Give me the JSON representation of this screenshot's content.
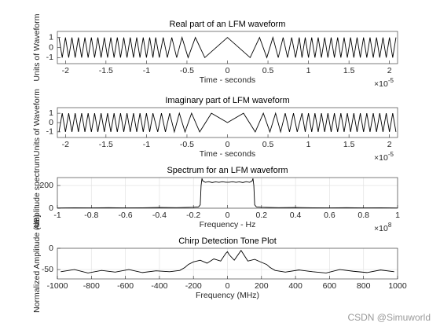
{
  "charts": [
    {
      "type": "line",
      "title": "Real part of an LFM waveform",
      "xlabel": "Time - seconds",
      "ylabel": "Units of Waveform",
      "x_multiplier": {
        "base": "×10",
        "exponent": "-5"
      },
      "xlim": [
        -2.1,
        2.1
      ],
      "xticks": [
        -2,
        -1.5,
        -1,
        -0.5,
        0,
        0.5,
        1,
        1.5,
        2
      ],
      "ylim": [
        -1.6,
        1.6
      ],
      "yticks": [
        -1,
        0,
        1
      ],
      "grid": false,
      "series": [
        {
          "color": "#000000",
          "x": [
            -2.08,
            -2.04,
            -2,
            -1.96,
            -1.92,
            -1.88,
            -1.84,
            -1.8,
            -1.76,
            -1.72,
            -1.68,
            -1.64,
            -1.6,
            -1.56,
            -1.52,
            -1.48,
            -1.44,
            -1.4,
            -1.36,
            -1.32,
            -1.28,
            -1.24,
            -1.2,
            -1.16,
            -1.12,
            -1.08,
            -1.04,
            -1,
            -0.96,
            -0.92,
            -0.886,
            -0.841,
            -0.793,
            -0.742,
            -0.687,
            -0.627,
            -0.561,
            -0.486,
            -0.396,
            -0.28,
            0,
            0.28,
            0.396,
            0.486,
            0.561,
            0.627,
            0.687,
            0.742,
            0.793,
            0.841,
            0.886,
            0.92,
            0.96,
            1,
            1.04,
            1.08,
            1.12,
            1.16,
            1.2,
            1.24,
            1.28,
            1.32,
            1.36,
            1.4,
            1.44,
            1.48,
            1.52,
            1.56,
            1.6,
            1.64,
            1.68,
            1.72,
            1.76,
            1.8,
            1.84,
            1.88,
            1.92,
            1.96,
            2,
            2.04,
            2.08
          ],
          "values": [
            1,
            -1,
            1,
            -1,
            1,
            -1,
            1,
            -1,
            1,
            -1,
            1,
            -1,
            1,
            -1,
            1,
            -1,
            1,
            -1,
            1,
            -1,
            1,
            -1,
            1,
            -1,
            1,
            -1,
            1,
            -1,
            1,
            -1,
            1,
            -1,
            1,
            -1,
            1,
            -1,
            1,
            -1,
            1,
            -1,
            1,
            -1,
            1,
            -1,
            1,
            -1,
            1,
            -1,
            1,
            -1,
            1,
            -1,
            1,
            -1,
            1,
            -1,
            1,
            -1,
            1,
            -1,
            1,
            -1,
            1,
            -1,
            1,
            -1,
            1,
            -1,
            1,
            -1,
            1,
            -1,
            1,
            -1,
            1,
            -1,
            1,
            -1,
            1,
            -1,
            1
          ]
        }
      ]
    },
    {
      "type": "line",
      "title": "Imaginary part of LFM waveform",
      "xlabel": "Time - seconds",
      "ylabel": "Units of Waveform",
      "x_multiplier": {
        "base": "×10",
        "exponent": "-5"
      },
      "xlim": [
        -2.1,
        2.1
      ],
      "xticks": [
        -2,
        -1.5,
        -1,
        -0.5,
        0,
        0.5,
        1,
        1.5,
        2
      ],
      "ylim": [
        -1.6,
        1.6
      ],
      "yticks": [
        -1,
        0,
        1
      ],
      "grid": false,
      "series": [
        {
          "color": "#000000",
          "x": [
            -2.08,
            -2.04,
            -2,
            -1.96,
            -1.92,
            -1.88,
            -1.84,
            -1.8,
            -1.76,
            -1.72,
            -1.68,
            -1.64,
            -1.6,
            -1.56,
            -1.52,
            -1.48,
            -1.44,
            -1.4,
            -1.36,
            -1.32,
            -1.28,
            -1.24,
            -1.2,
            -1.16,
            -1.12,
            -1.08,
            -1.04,
            -1,
            -0.96,
            -0.92,
            -0.861,
            -0.815,
            -0.766,
            -0.713,
            -0.656,
            -0.594,
            -0.524,
            -0.443,
            -0.343,
            -0.198,
            0,
            0.198,
            0.343,
            0.443,
            0.524,
            0.594,
            0.656,
            0.713,
            0.766,
            0.815,
            0.861,
            0.92,
            0.96,
            1,
            1.04,
            1.08,
            1.12,
            1.16,
            1.2,
            1.24,
            1.28,
            1.32,
            1.36,
            1.4,
            1.44,
            1.48,
            1.52,
            1.56,
            1.6,
            1.64,
            1.68,
            1.72,
            1.76,
            1.8,
            1.84,
            1.88,
            1.92,
            1.96,
            2,
            2.04,
            2.08
          ],
          "values": [
            -1,
            1,
            -1,
            1,
            -1,
            1,
            -1,
            1,
            -1,
            1,
            -1,
            1,
            -1,
            1,
            -1,
            1,
            -1,
            1,
            -1,
            1,
            -1,
            1,
            -1,
            1,
            -1,
            1,
            -1,
            1,
            -1,
            1,
            -1,
            1,
            -1,
            1,
            -1,
            1,
            -1,
            1,
            -1,
            1,
            0,
            1,
            -1,
            1,
            -1,
            1,
            -1,
            1,
            -1,
            1,
            -1,
            1,
            -1,
            1,
            -1,
            1,
            -1,
            1,
            -1,
            1,
            -1,
            1,
            -1,
            1,
            -1,
            1,
            -1,
            1,
            -1,
            1,
            -1,
            1,
            -1,
            1,
            -1,
            1,
            -1,
            1,
            -1,
            1,
            -1
          ]
        }
      ]
    },
    {
      "type": "line",
      "title": "Spectrum for an LFM waveform",
      "xlabel": "Frequency - Hz",
      "ylabel": "Amplitude spectrum",
      "x_multiplier": {
        "base": "×10",
        "exponent": "8"
      },
      "xlim": [
        -1,
        1
      ],
      "xticks": [
        -1,
        -0.8,
        -0.6,
        -0.4,
        -0.2,
        0,
        0.2,
        0.4,
        0.6,
        0.8,
        1
      ],
      "ylim": [
        0,
        270
      ],
      "yticks": [
        0,
        200
      ],
      "grid": true,
      "series": [
        {
          "color": "#000000",
          "x": [
            -1,
            -0.9,
            -0.8,
            -0.7,
            -0.6,
            -0.5,
            -0.4,
            -0.3,
            -0.2,
            -0.17,
            -0.16,
            -0.155,
            -0.15,
            -0.145,
            -0.13,
            -0.11,
            -0.09,
            -0.07,
            -0.05,
            -0.03,
            -0.01,
            0.01,
            0.03,
            0.05,
            0.07,
            0.09,
            0.11,
            0.13,
            0.145,
            0.15,
            0.155,
            0.16,
            0.17,
            0.2,
            0.3,
            0.4,
            0.5,
            0.6,
            0.7,
            0.8,
            0.9,
            1
          ],
          "values": [
            2,
            4,
            3,
            5,
            3,
            4,
            6,
            5,
            8,
            12,
            30,
            200,
            262,
            240,
            228,
            234,
            226,
            232,
            228,
            233,
            229,
            229,
            233,
            228,
            232,
            226,
            234,
            228,
            240,
            262,
            200,
            30,
            12,
            8,
            5,
            6,
            4,
            3,
            5,
            3,
            4,
            2
          ]
        }
      ]
    },
    {
      "type": "line",
      "title": "Chirp Detection Tone Plot",
      "xlabel": "Frequency (MHz)",
      "ylabel": "Normalized Amplitude (dB)",
      "xlim": [
        -1000,
        1000
      ],
      "xticks": [
        -1000,
        -800,
        -600,
        -400,
        -200,
        0,
        200,
        400,
        600,
        800,
        1000
      ],
      "ylim": [
        -72,
        0
      ],
      "yticks": [
        -50,
        0
      ],
      "grid": true,
      "series": [
        {
          "color": "#000000",
          "x": [
            -980,
            -900,
            -820,
            -740,
            -660,
            -580,
            -500,
            -420,
            -340,
            -280,
            -250,
            -230,
            -200,
            -160,
            -120,
            -80,
            -40,
            -10,
            0,
            10,
            40,
            80,
            120,
            160,
            200,
            230,
            250,
            280,
            340,
            420,
            500,
            580,
            660,
            740,
            820,
            900,
            980
          ],
          "values": [
            -55,
            -50,
            -58,
            -52,
            -56,
            -50,
            -57,
            -53,
            -55,
            -52,
            -45,
            -38,
            -32,
            -28,
            -35,
            -25,
            -30,
            -12,
            -8,
            -15,
            -28,
            -5,
            -30,
            -26,
            -33,
            -38,
            -45,
            -52,
            -56,
            -51,
            -55,
            -58,
            -50,
            -54,
            -57,
            -51,
            -55
          ]
        }
      ]
    }
  ],
  "watermark": "CSDN @Simuworld"
}
